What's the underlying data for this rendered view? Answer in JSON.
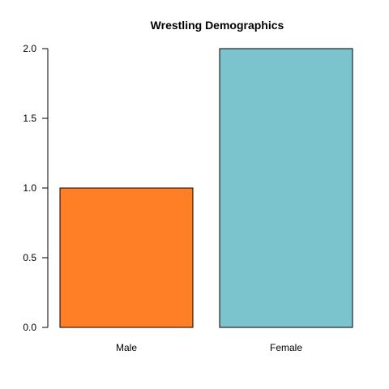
{
  "chart_data": {
    "type": "bar",
    "title": "Wrestling Demographics",
    "xlabel": "",
    "ylabel": "",
    "categories": [
      "Male",
      "Female"
    ],
    "values": [
      1,
      2
    ],
    "colors": [
      "#ff7f27",
      "#7bc4ce"
    ],
    "ylim": [
      0,
      2
    ],
    "yticks": [
      "0.0",
      "0.5",
      "1.0",
      "1.5",
      "2.0"
    ],
    "ytick_values": [
      0,
      0.5,
      1,
      1.5,
      2
    ],
    "grid": false,
    "legend": "none"
  }
}
